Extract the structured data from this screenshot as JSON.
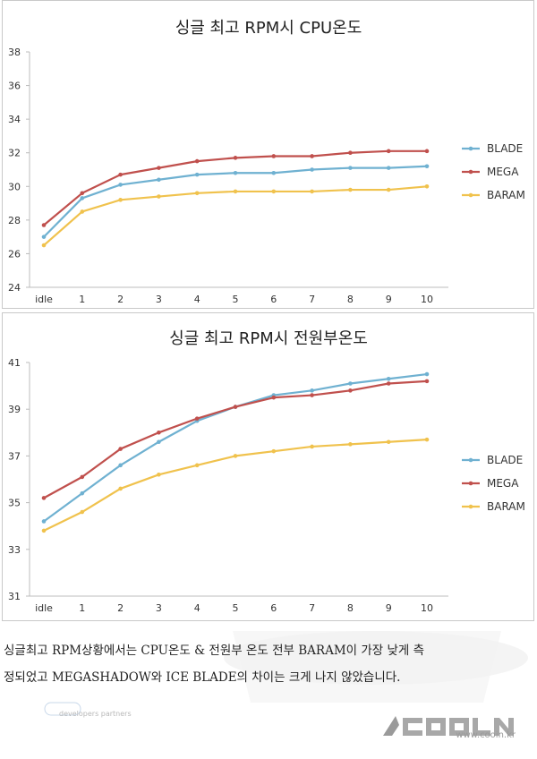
{
  "chart_data": [
    {
      "type": "line",
      "title": "싱글 최고 RPM시 CPU온도",
      "categories": [
        "idle",
        "1",
        "2",
        "3",
        "4",
        "5",
        "6",
        "7",
        "8",
        "9",
        "10"
      ],
      "y_ticks": [
        "24",
        "26",
        "28",
        "30",
        "32",
        "34",
        "36",
        "38"
      ],
      "ylim": [
        24,
        38
      ],
      "grid": false,
      "legend_position": "right",
      "series": [
        {
          "name": "BLADE",
          "color": "#6fb1d1",
          "values": [
            27.0,
            29.3,
            30.1,
            30.4,
            30.7,
            30.8,
            30.8,
            31.0,
            31.1,
            31.1,
            31.2
          ]
        },
        {
          "name": "MEGA",
          "color": "#c0504d",
          "values": [
            27.7,
            29.6,
            30.7,
            31.1,
            31.5,
            31.7,
            31.8,
            31.8,
            32.0,
            32.1,
            32.1
          ]
        },
        {
          "name": "BARAM",
          "color": "#f0c24d",
          "values": [
            26.5,
            28.5,
            29.2,
            29.4,
            29.6,
            29.7,
            29.7,
            29.7,
            29.8,
            29.8,
            30.0
          ]
        }
      ]
    },
    {
      "type": "line",
      "title": "싱글 최고 RPM시 전원부온도",
      "categories": [
        "idle",
        "1",
        "2",
        "3",
        "4",
        "5",
        "6",
        "7",
        "8",
        "9",
        "10"
      ],
      "y_ticks": [
        "31",
        "33",
        "35",
        "37",
        "39",
        "41"
      ],
      "ylim": [
        31,
        41
      ],
      "grid": false,
      "legend_position": "right",
      "series": [
        {
          "name": "BLADE",
          "color": "#6fb1d1",
          "values": [
            34.2,
            35.4,
            36.6,
            37.6,
            38.5,
            39.1,
            39.6,
            39.8,
            40.1,
            40.3,
            40.5
          ]
        },
        {
          "name": "MEGA",
          "color": "#c0504d",
          "values": [
            35.2,
            36.1,
            37.3,
            38.0,
            38.6,
            39.1,
            39.5,
            39.6,
            39.8,
            40.1,
            40.2
          ]
        },
        {
          "name": "BARAM",
          "color": "#f0c24d",
          "values": [
            33.8,
            34.6,
            35.6,
            36.2,
            36.6,
            37.0,
            37.2,
            37.4,
            37.5,
            37.6,
            37.7
          ]
        }
      ]
    }
  ],
  "caption": {
    "line1": "싱글최고 RPM상황에서는 CPU온도 & 전원부 온도 전부 BARAM이 가장 낮게 측",
    "line2": "정되었고 MEGASHADOW와 ICE BLADE의 차이는 크게 나지 않았습니다."
  },
  "watermark": {
    "brand_url": "www.cooin.kr",
    "partner_text": "developers partners"
  }
}
